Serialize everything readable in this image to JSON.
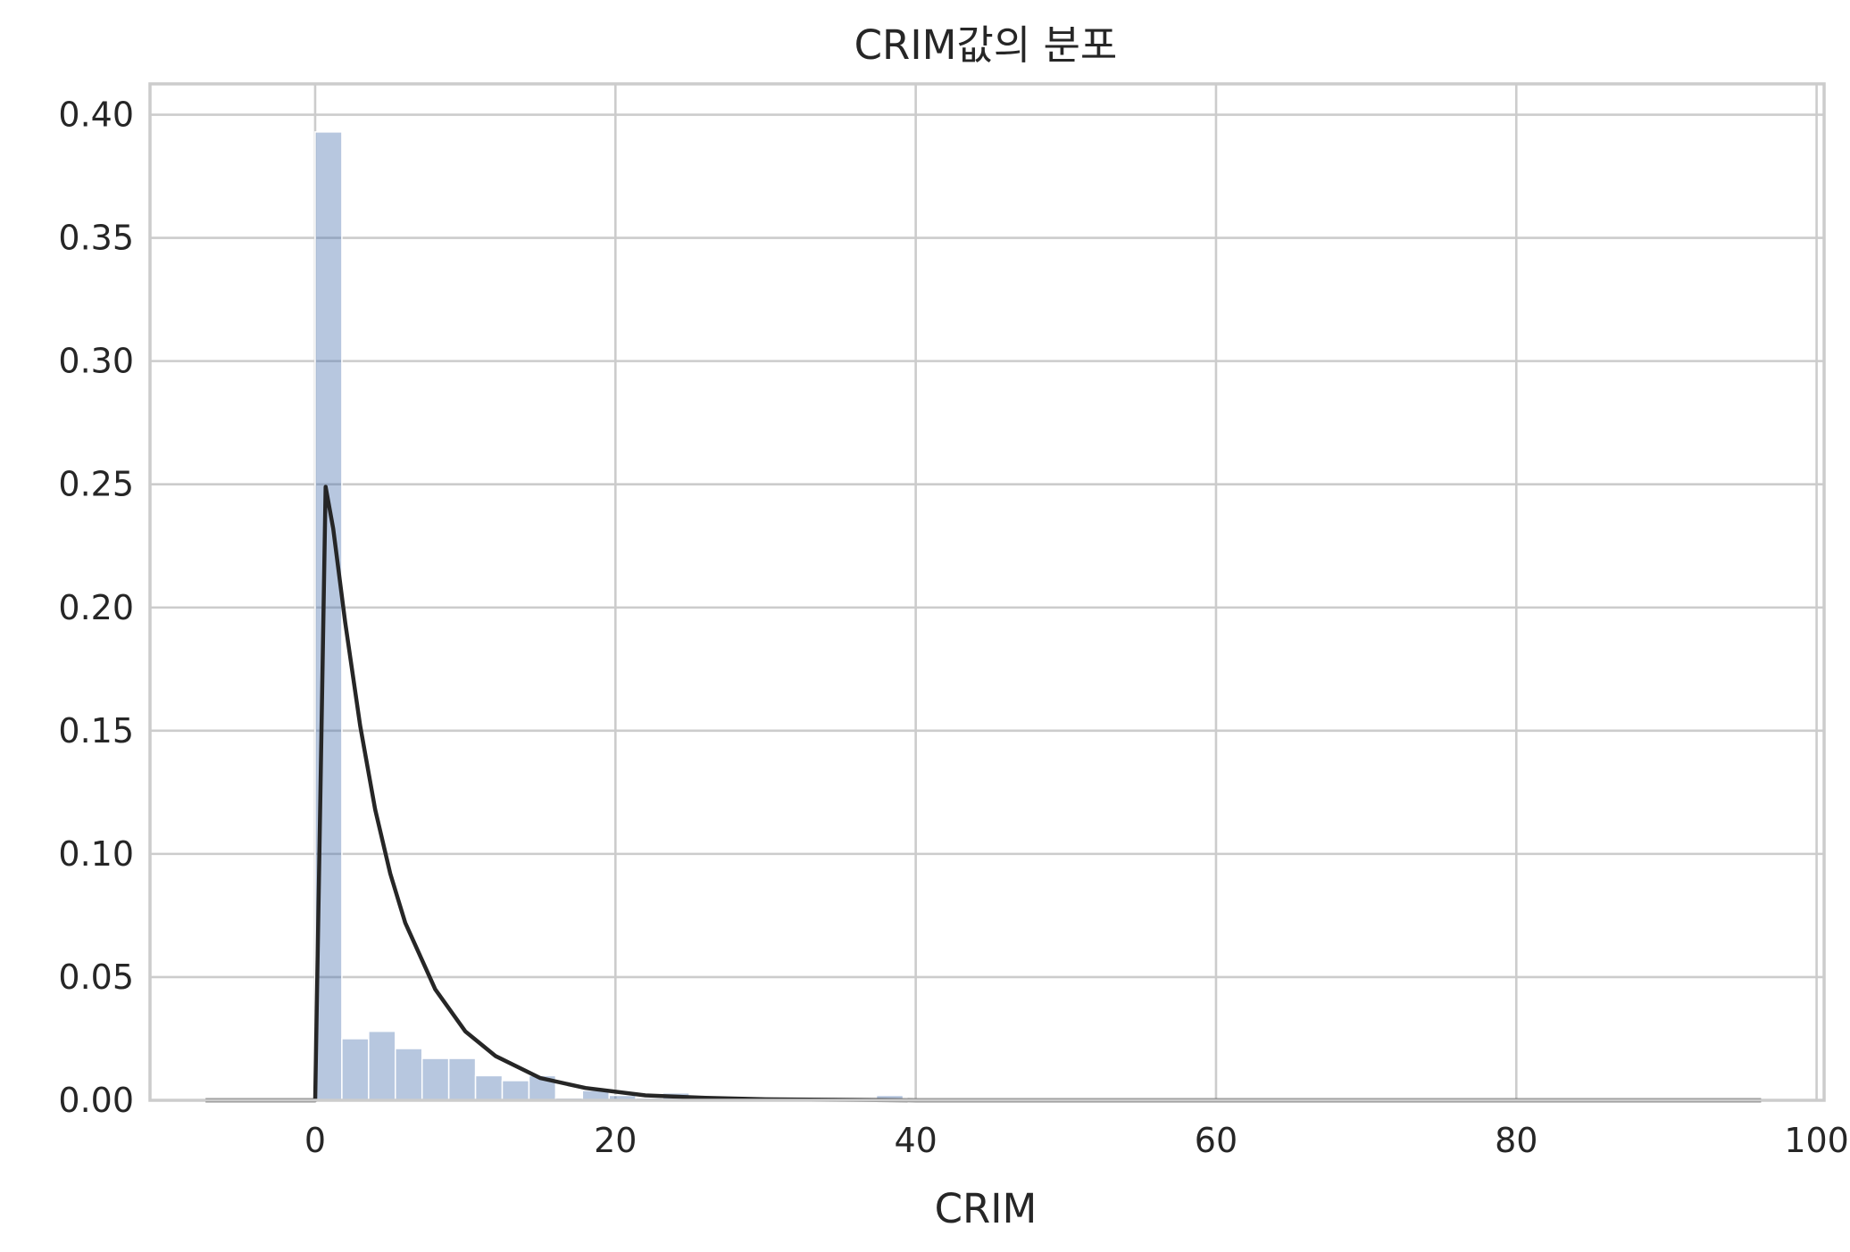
{
  "chart_data": {
    "type": "bar",
    "title": "CRIM값의 분포",
    "xlabel": "CRIM",
    "ylabel": "",
    "xlim": [
      -11,
      100.5
    ],
    "ylim": [
      0,
      0.4125
    ],
    "x_ticks": [
      0,
      20,
      40,
      60,
      80,
      100
    ],
    "x_tick_labels": [
      "0",
      "20",
      "40",
      "60",
      "80",
      "100"
    ],
    "y_ticks": [
      0.0,
      0.05,
      0.1,
      0.15,
      0.2,
      0.25,
      0.3,
      0.35,
      0.4
    ],
    "y_tick_labels": [
      "0.00",
      "0.05",
      "0.10",
      "0.15",
      "0.20",
      "0.25",
      "0.30",
      "0.35",
      "0.40"
    ],
    "grid": true,
    "histogram": {
      "bin_edges": [
        0.0,
        1.78,
        3.56,
        5.34,
        7.12,
        8.9,
        10.68,
        12.46,
        14.24,
        16.02,
        17.8,
        19.58,
        21.36,
        23.14,
        24.92,
        26.7,
        28.48,
        30.26,
        32.04,
        33.82,
        35.6,
        37.38,
        39.16
      ],
      "density": [
        0.393,
        0.025,
        0.028,
        0.021,
        0.017,
        0.017,
        0.01,
        0.008,
        0.01,
        0.001,
        0.004,
        0.002,
        0.001,
        0.003,
        0.001,
        0.0,
        0.0,
        0.0,
        0.0,
        0.0,
        0.0,
        0.002
      ]
    },
    "fitted_curve": {
      "x": [
        -7.3,
        0.0,
        0.7,
        1.2,
        2.0,
        3.0,
        4.0,
        5.0,
        6.0,
        8.0,
        10.0,
        12.0,
        15.0,
        18.0,
        22.0,
        26.0,
        30.0,
        40.0,
        60.0,
        80.0,
        96.3
      ],
      "y": [
        0.0,
        0.0,
        0.249,
        0.232,
        0.194,
        0.152,
        0.118,
        0.092,
        0.072,
        0.045,
        0.028,
        0.018,
        0.009,
        0.005,
        0.002,
        0.001,
        0.0004,
        0.0,
        0.0,
        0.0,
        0.0
      ]
    },
    "colors": {
      "bars": "#4c72b0",
      "curve": "#262626",
      "grid": "#cccccc"
    }
  }
}
